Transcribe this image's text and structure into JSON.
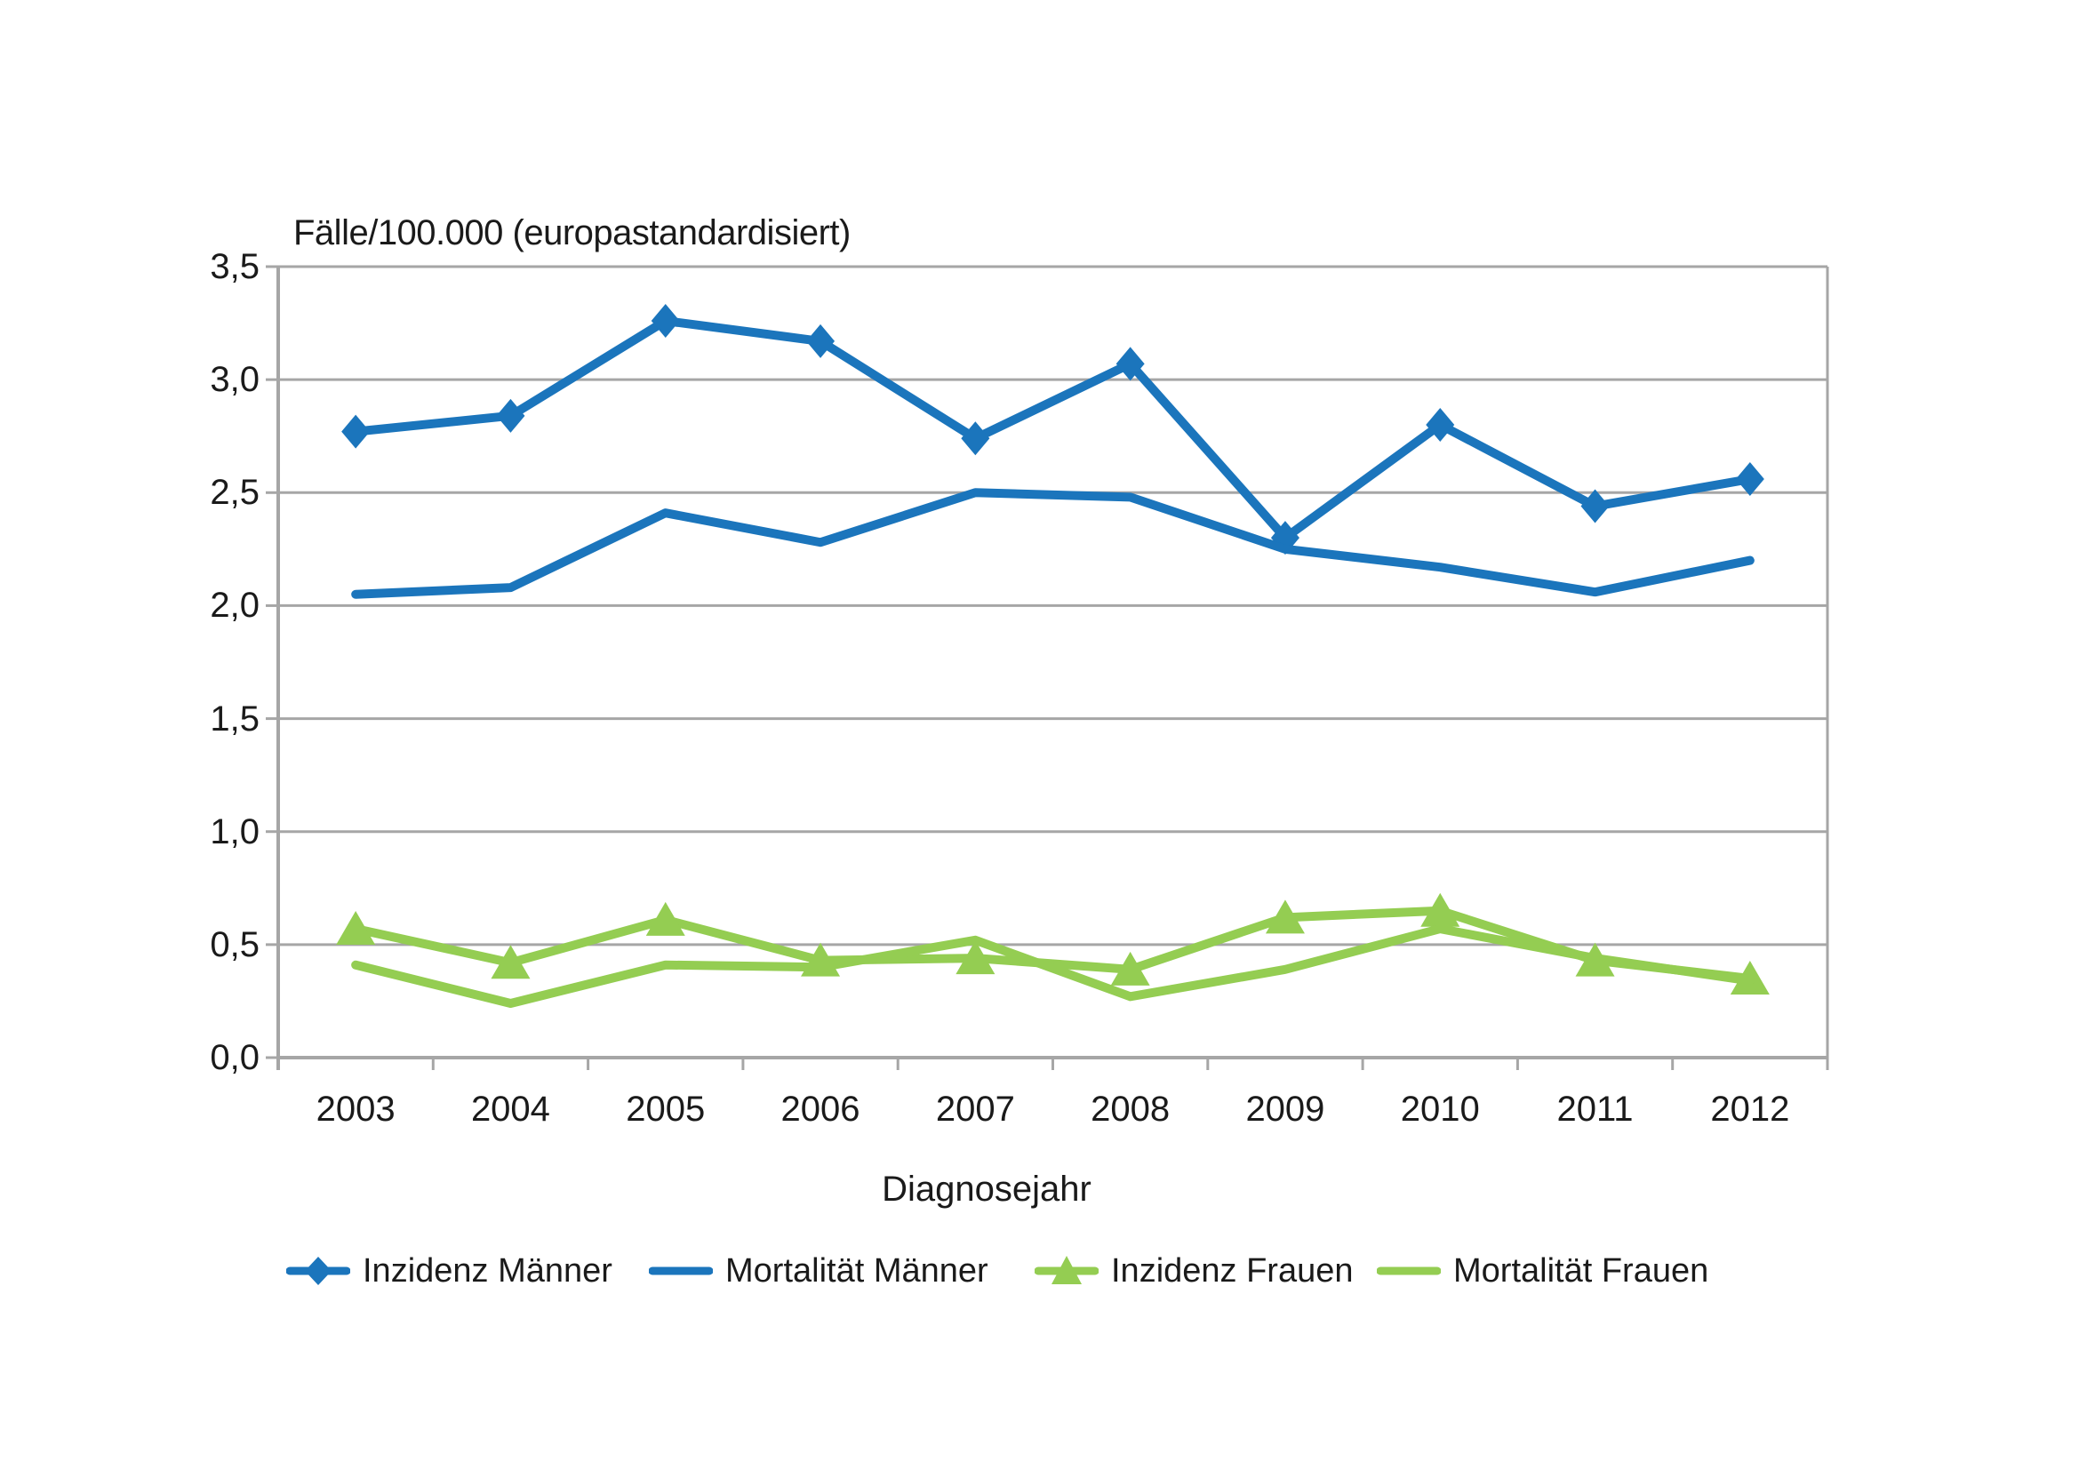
{
  "page": {
    "background": "#FFFFFF"
  },
  "chart_data": {
    "type": "line",
    "title": "Fälle/100.000 (europastandardisiert)",
    "xlabel": "Diagnosejahr",
    "ylabel": "",
    "x_categories": [
      "2003",
      "2004",
      "2005",
      "2006",
      "2007",
      "2008",
      "2009",
      "2010",
      "2011",
      "2012"
    ],
    "y_tick_labels": [
      "3,5",
      "3,0",
      "2,5",
      "2,0",
      "1,5",
      "1,0",
      "0,5",
      "0,0"
    ],
    "ylim": [
      0,
      3.5
    ],
    "y_tick_step": 0.5,
    "grid": true,
    "legend_position": "bottom",
    "colors": {
      "maenner_blue": "#1B75BC",
      "frauen_green": "#94CD52",
      "gridline": "#A6A6A6",
      "axis": "#A6A6A6",
      "text": "#1A1A1A"
    },
    "series": [
      {
        "key": "inzidenz-maenner",
        "name": "Inzidenz Männer",
        "color": "#1B75BC",
        "marker": "diamond",
        "values": [
          2.77,
          2.84,
          3.26,
          3.17,
          2.74,
          3.07,
          2.3,
          2.8,
          2.44,
          2.56
        ]
      },
      {
        "key": "mortalitaet-maenner",
        "name": "Mortalität Männer",
        "color": "#1B75BC",
        "marker": "none",
        "values": [
          2.05,
          2.08,
          2.41,
          2.28,
          2.5,
          2.48,
          2.25,
          2.17,
          2.06,
          2.2
        ]
      },
      {
        "key": "inzidenz-frauen",
        "name": "Inzidenz Frauen",
        "color": "#94CD52",
        "marker": "triangle",
        "values": [
          0.57,
          0.42,
          0.61,
          0.43,
          0.44,
          0.39,
          0.62,
          0.65,
          0.43,
          0.35
        ]
      },
      {
        "key": "mortalitaet-frauen",
        "name": "Mortalität Frauen",
        "color": "#94CD52",
        "marker": "none",
        "values": [
          0.41,
          0.24,
          0.41,
          0.4,
          0.52,
          0.27,
          0.39,
          0.57,
          0.44,
          0.34
        ]
      }
    ]
  }
}
